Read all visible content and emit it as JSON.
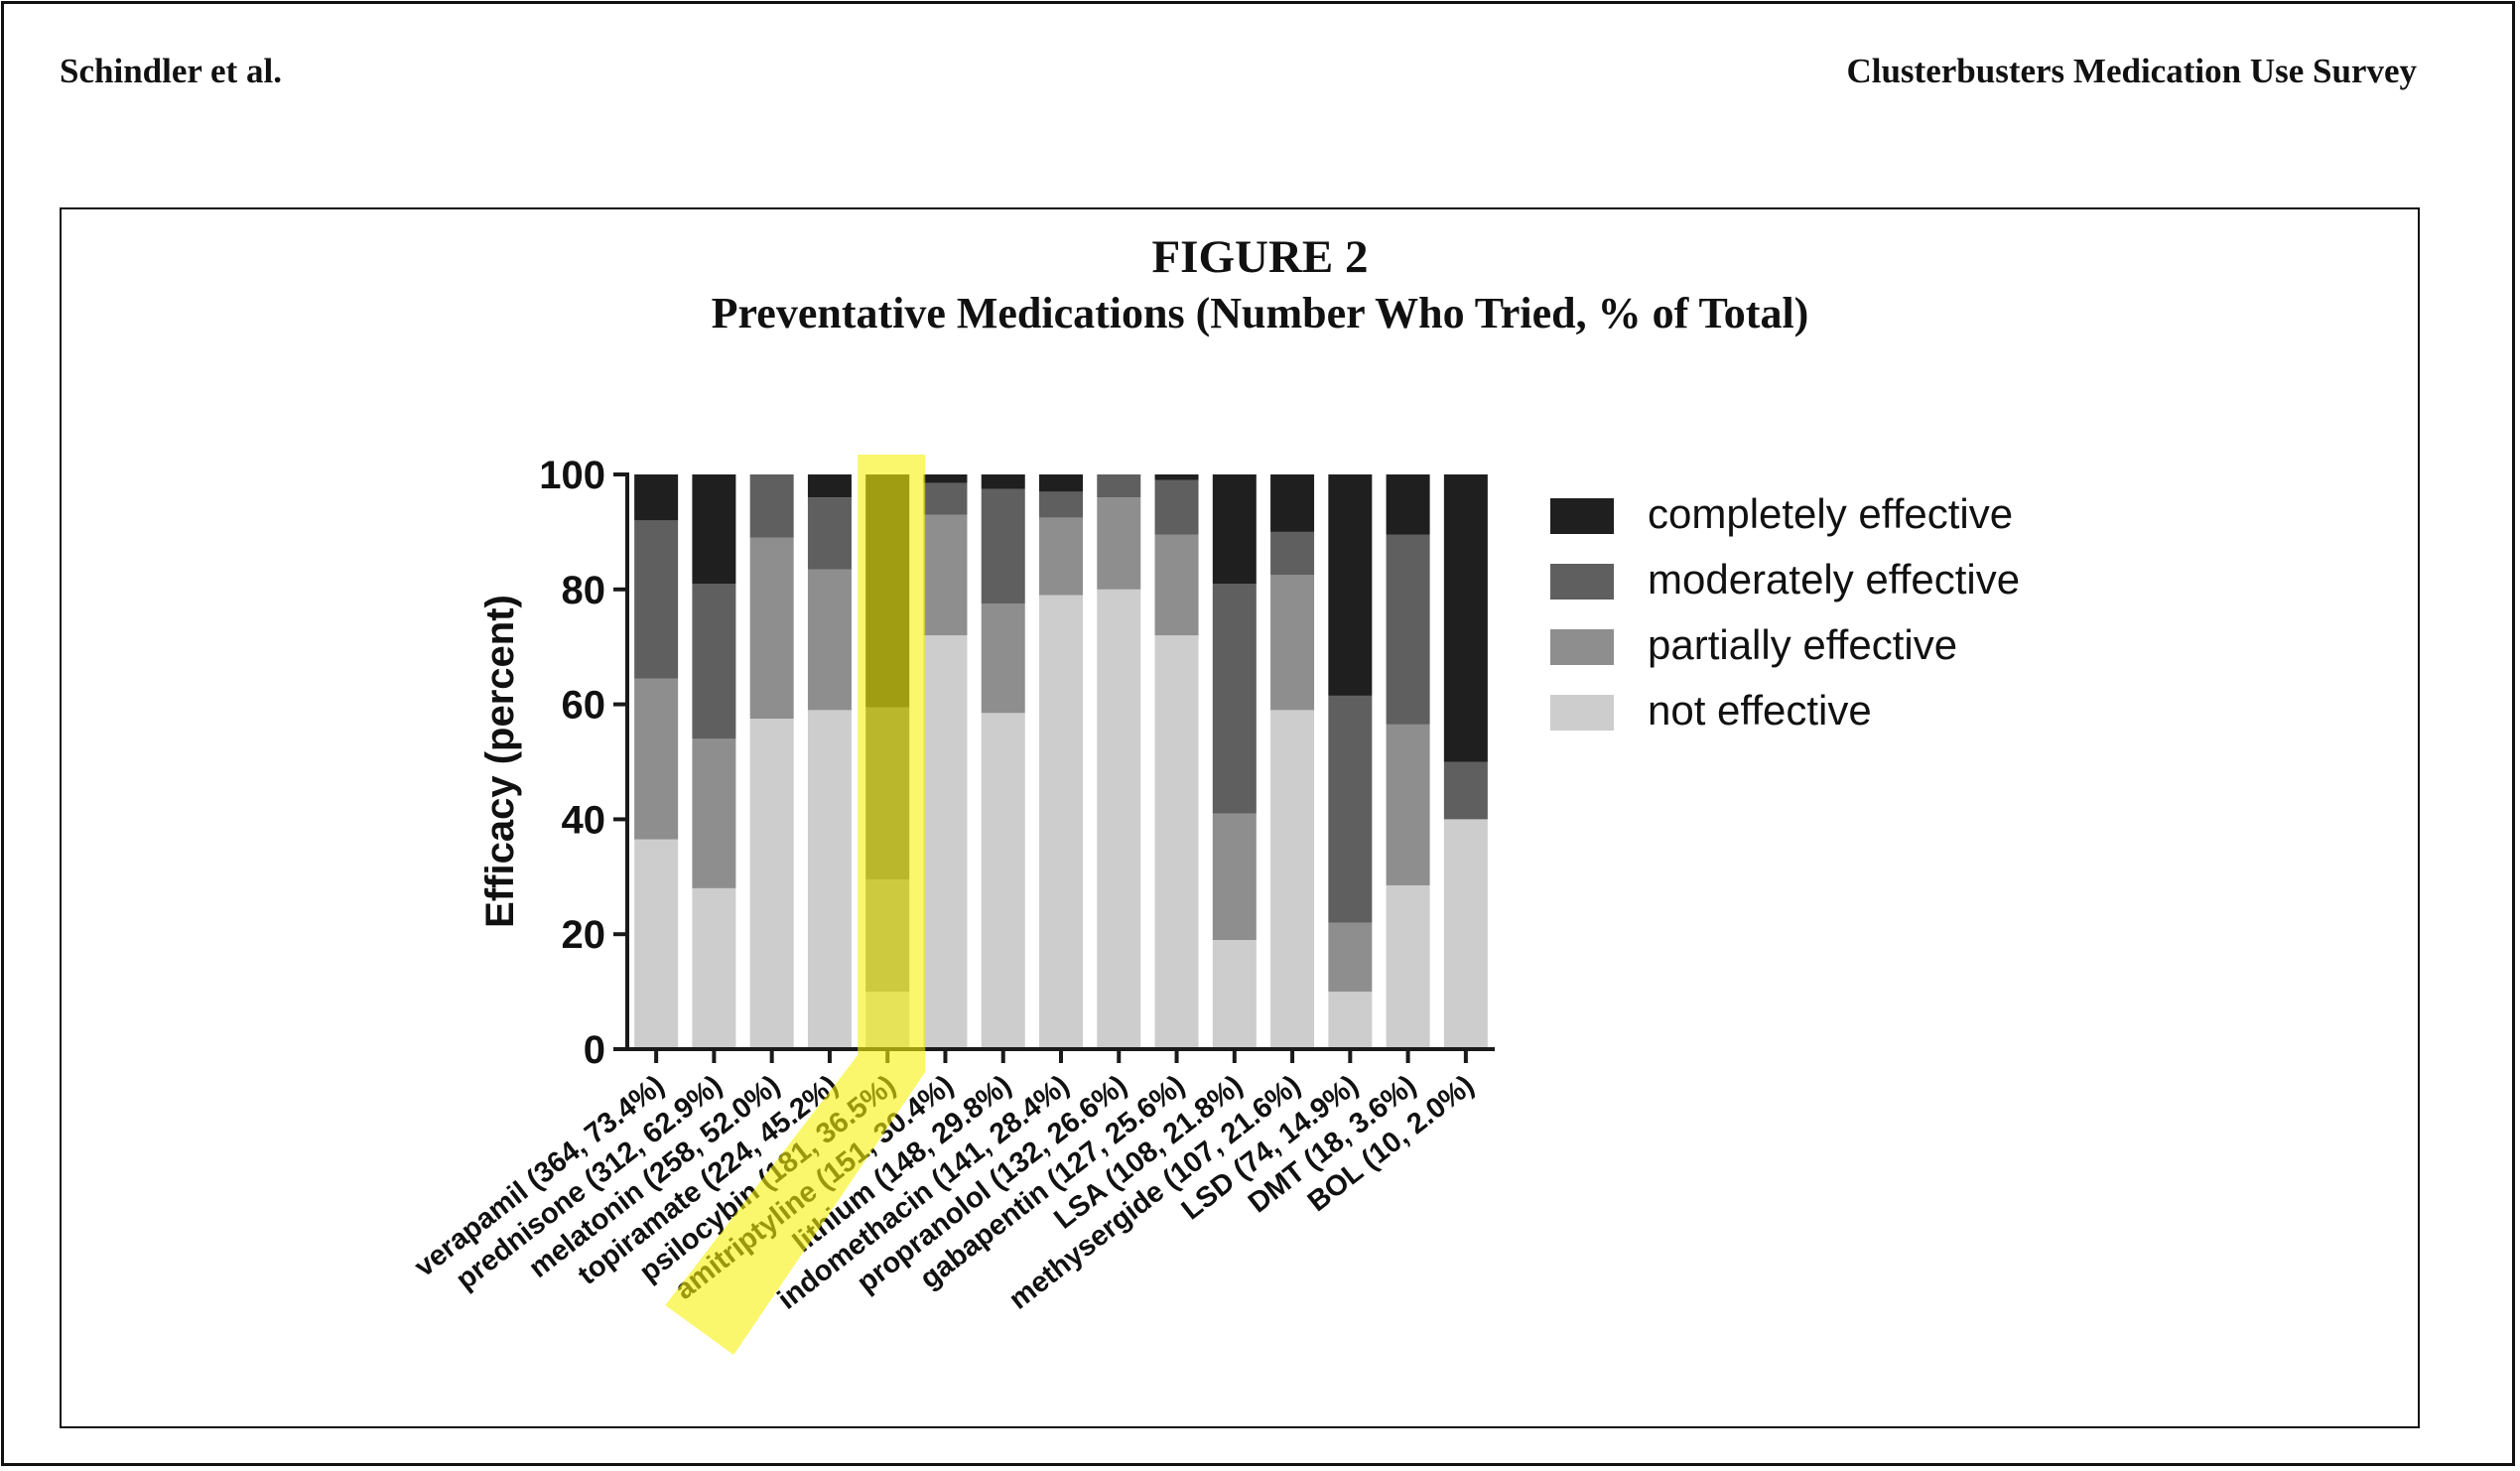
{
  "header": {
    "left": "Schindler et al.",
    "right": "Clusterbusters Medication Use Survey"
  },
  "figure": {
    "label": "FIGURE 2",
    "title": "Preventative Medications (Number Who Tried, % of Total)"
  },
  "colors": {
    "completely effective": "#1f1f1f",
    "moderately effective": "#5f5f5f",
    "partially effective": "#8e8e8e",
    "not effective": "#cdcdcd",
    "highlight": "#f7f20a",
    "axis": "#1a1a1a"
  },
  "chart_data": {
    "type": "bar",
    "stacked": true,
    "title": "Preventative Medications (Number Who Tried, % of Total)",
    "xlabel": "",
    "ylabel": "Efficacy (percent)",
    "ylim": [
      0,
      100
    ],
    "yticks": [
      0,
      20,
      40,
      60,
      80,
      100
    ],
    "legend_position": "right",
    "highlighted_category": "psilocybin (181, 36.5%)",
    "categories": [
      "verapamil (364, 73.4%)",
      "prednisone (312, 62.9%)",
      "melatonin (258, 52.0%)",
      "topiramate (224, 45.2%)",
      "psilocybin (181, 36.5%)",
      "amitriptyline (151, 30.4%)",
      "lithium (148, 29.8%)",
      "indomethacin (141, 28.4%)",
      "propranolol (132, 26.6%)",
      "gabapentin (127, 25.6%)",
      "LSA (108, 21.8%)",
      "methysergide (107, 21.6%)",
      "LSD (74, 14.9%)",
      "DMT (18, 3.6%)",
      "BOL (10, 2.0%)"
    ],
    "series": [
      {
        "name": "not effective",
        "values": [
          36.5,
          28,
          57.5,
          59,
          10,
          72,
          58.5,
          79,
          80,
          72,
          19,
          59,
          10,
          28.5,
          40
        ]
      },
      {
        "name": "partially effective",
        "values": [
          28,
          26,
          31.5,
          24.5,
          19.5,
          21,
          19,
          13.5,
          16,
          17.5,
          22,
          23.5,
          12,
          28,
          0
        ]
      },
      {
        "name": "moderately effective",
        "values": [
          27.5,
          27,
          11,
          12.5,
          30,
          5.5,
          20,
          4.5,
          4,
          9.5,
          40,
          7.5,
          39.5,
          33,
          10
        ]
      },
      {
        "name": "completely effective",
        "values": [
          8,
          19,
          0,
          4,
          40.5,
          1.5,
          2.5,
          3,
          0,
          1,
          19,
          10,
          38.5,
          10.5,
          50
        ]
      }
    ],
    "legend": [
      "completely effective",
      "moderately effective",
      "partially effective",
      "not effective"
    ]
  }
}
